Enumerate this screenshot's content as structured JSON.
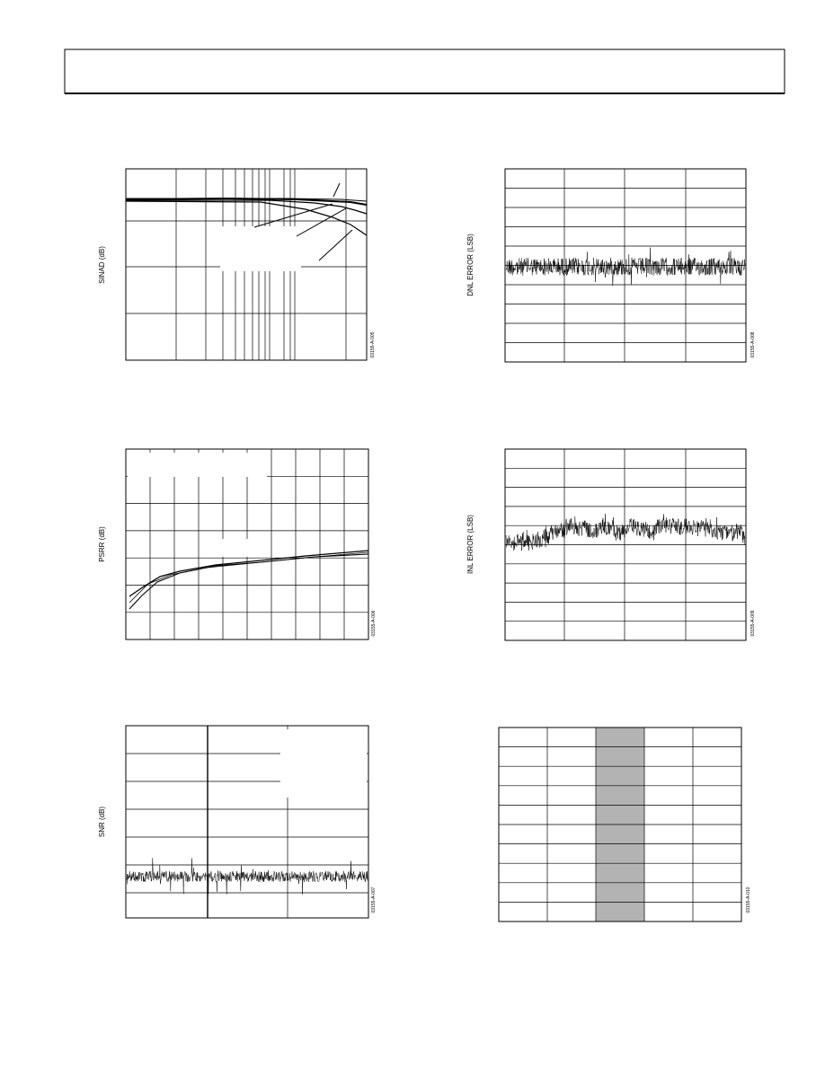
{
  "figures": [
    {
      "y_axis_label": "SINAD (dB)",
      "code": "03155-A-005"
    },
    {
      "y_axis_label": "DNL ERROR (LSB)",
      "code": "03155-A-008"
    },
    {
      "y_axis_label": "PSRR (dB)",
      "code": "03155-A-006"
    },
    {
      "y_axis_label": "INL ERROR (LSB)",
      "code": "03155-A-009"
    },
    {
      "y_axis_label": "SNR (dB)",
      "code": "03155-A-007"
    },
    {
      "code": "03155-A-010"
    }
  ]
}
